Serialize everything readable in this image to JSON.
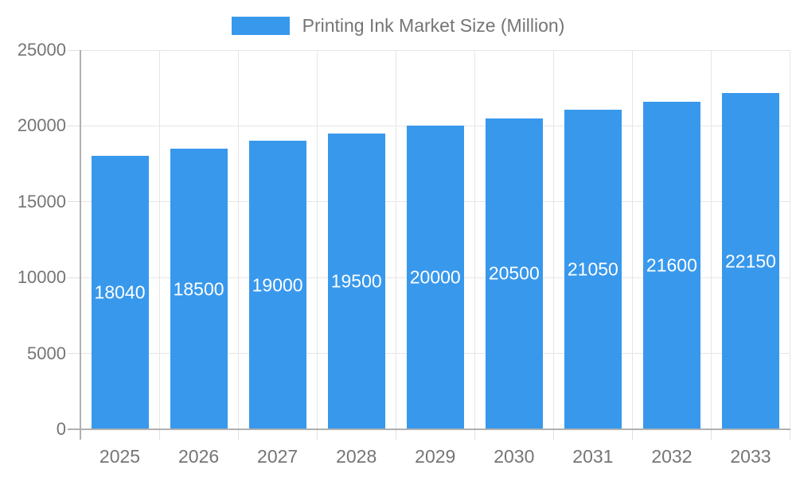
{
  "chart_data": {
    "type": "bar",
    "title": "Printing Ink Market Size (Million)",
    "legend": {
      "label": "Printing Ink Market Size (Million)",
      "position": "top"
    },
    "categories": [
      "2025",
      "2026",
      "2027",
      "2028",
      "2029",
      "2030",
      "2031",
      "2032",
      "2033"
    ],
    "series": [
      {
        "name": "Printing Ink Market Size (Million)",
        "values": [
          18040,
          18500,
          19000,
          19500,
          20000,
          20500,
          21050,
          21600,
          22150
        ]
      }
    ],
    "xlabel": "",
    "ylabel": "",
    "ylim": [
      0,
      25000
    ],
    "y_ticks": [
      0,
      5000,
      10000,
      15000,
      20000,
      25000
    ],
    "grid": true,
    "bar_labels_inside": true,
    "colors": {
      "bar": "#3898EC",
      "axis_line": "#b0b0b0",
      "gridline": "#e6e6e6",
      "minor_tick": "#e0e0e0",
      "label_text": "#757575",
      "bar_label_text": "#ffffff",
      "background": "#ffffff"
    }
  }
}
